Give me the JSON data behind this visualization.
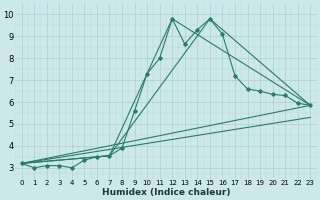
{
  "xlabel": "Humidex (Indice chaleur)",
  "ylabel": "",
  "bg_color": "#cce8ea",
  "line_color": "#2a7a6a",
  "grid_major_color": "#aacdd2",
  "grid_minor_color": "#bcd8dc",
  "xlim": [
    -0.5,
    23.5
  ],
  "ylim": [
    2.5,
    10.5
  ],
  "xticks": [
    0,
    1,
    2,
    3,
    4,
    5,
    6,
    7,
    8,
    9,
    10,
    11,
    12,
    13,
    14,
    15,
    16,
    17,
    18,
    19,
    20,
    21,
    22,
    23
  ],
  "yticks": [
    3,
    4,
    5,
    6,
    7,
    8,
    9,
    10
  ],
  "main_x": [
    0,
    1,
    2,
    3,
    4,
    5,
    6,
    7,
    8,
    9,
    10,
    11,
    12,
    13,
    14,
    15,
    16,
    17,
    18,
    19,
    20,
    21,
    22,
    23
  ],
  "main_y": [
    3.2,
    3.0,
    3.1,
    3.1,
    3.0,
    3.35,
    3.5,
    3.55,
    3.9,
    5.6,
    7.3,
    8.0,
    9.8,
    8.65,
    9.3,
    9.8,
    9.1,
    7.2,
    6.6,
    6.5,
    6.35,
    6.3,
    5.95,
    5.85
  ],
  "extra_lines": [
    {
      "x": [
        0,
        7,
        12,
        23
      ],
      "y": [
        3.2,
        3.55,
        9.8,
        5.85
      ]
    },
    {
      "x": [
        0,
        7,
        15,
        23
      ],
      "y": [
        3.2,
        3.55,
        9.8,
        5.85
      ]
    },
    {
      "x": [
        0,
        23
      ],
      "y": [
        3.2,
        5.85
      ]
    },
    {
      "x": [
        0,
        23
      ],
      "y": [
        3.2,
        5.3
      ]
    }
  ]
}
